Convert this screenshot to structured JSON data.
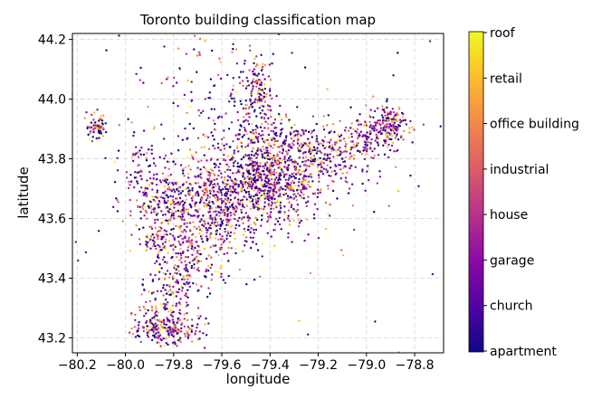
{
  "chart_data": {
    "type": "scatter",
    "title": "Toronto building classification map",
    "xlabel": "longitude",
    "ylabel": "latitude",
    "xlim": [
      -80.22,
      -78.68
    ],
    "ylim": [
      43.15,
      44.22
    ],
    "x_ticks": [
      -80.2,
      -80.0,
      -79.8,
      -79.6,
      -79.4,
      -79.2,
      -79.0,
      -78.8
    ],
    "x_tick_labels": [
      "−80.2",
      "−80.0",
      "−79.8",
      "−79.6",
      "−79.4",
      "−79.2",
      "−79.0",
      "−78.8"
    ],
    "y_ticks": [
      43.2,
      43.4,
      43.6,
      43.8,
      44.0,
      44.2
    ],
    "y_tick_labels": [
      "43.2",
      "43.4",
      "43.6",
      "43.8",
      "44.0",
      "44.2"
    ],
    "grid": true,
    "colorbar": {
      "colormap": "plasma",
      "labels": [
        "apartment",
        "church",
        "garage",
        "house",
        "industrial",
        "office building",
        "retail",
        "roof"
      ]
    },
    "clusters": [
      {
        "lon": -79.43,
        "lat": 43.72,
        "sdx": 0.13,
        "sdy": 0.07,
        "weight": 0.26
      },
      {
        "lon": -79.62,
        "lat": 43.62,
        "sdx": 0.09,
        "sdy": 0.08,
        "weight": 0.11
      },
      {
        "lon": -79.8,
        "lat": 43.66,
        "sdx": 0.07,
        "sdy": 0.06,
        "weight": 0.07
      },
      {
        "lon": -79.75,
        "lat": 43.45,
        "sdx": 0.06,
        "sdy": 0.08,
        "weight": 0.06
      },
      {
        "lon": -79.84,
        "lat": 43.3,
        "sdx": 0.05,
        "sdy": 0.06,
        "weight": 0.04
      },
      {
        "lon": -79.83,
        "lat": 43.23,
        "sdx": 0.07,
        "sdy": 0.025,
        "weight": 0.06
      },
      {
        "lon": -79.46,
        "lat": 43.9,
        "sdx": 0.06,
        "sdy": 0.06,
        "weight": 0.04
      },
      {
        "lon": -79.45,
        "lat": 44.04,
        "sdx": 0.03,
        "sdy": 0.05,
        "weight": 0.03
      },
      {
        "lon": -79.2,
        "lat": 43.83,
        "sdx": 0.12,
        "sdy": 0.05,
        "weight": 0.1
      },
      {
        "lon": -78.9,
        "lat": 43.91,
        "sdx": 0.035,
        "sdy": 0.035,
        "weight": 0.05
      },
      {
        "lon": -79.0,
        "lat": 43.87,
        "sdx": 0.04,
        "sdy": 0.04,
        "weight": 0.03
      },
      {
        "lon": -80.12,
        "lat": 43.91,
        "sdx": 0.02,
        "sdy": 0.02,
        "weight": 0.02
      },
      {
        "lon": -79.87,
        "lat": 43.53,
        "sdx": 0.03,
        "sdy": 0.03,
        "weight": 0.02
      },
      {
        "lon": -79.93,
        "lat": 43.75,
        "sdx": 0.05,
        "sdy": 0.08,
        "weight": 0.03
      },
      {
        "lon": -79.6,
        "lat": 43.98,
        "sdx": 0.15,
        "sdy": 0.15,
        "weight": 0.04
      },
      {
        "lon": -79.5,
        "lat": 43.8,
        "sdx": 0.4,
        "sdy": 0.3,
        "weight": 0.04
      }
    ]
  }
}
